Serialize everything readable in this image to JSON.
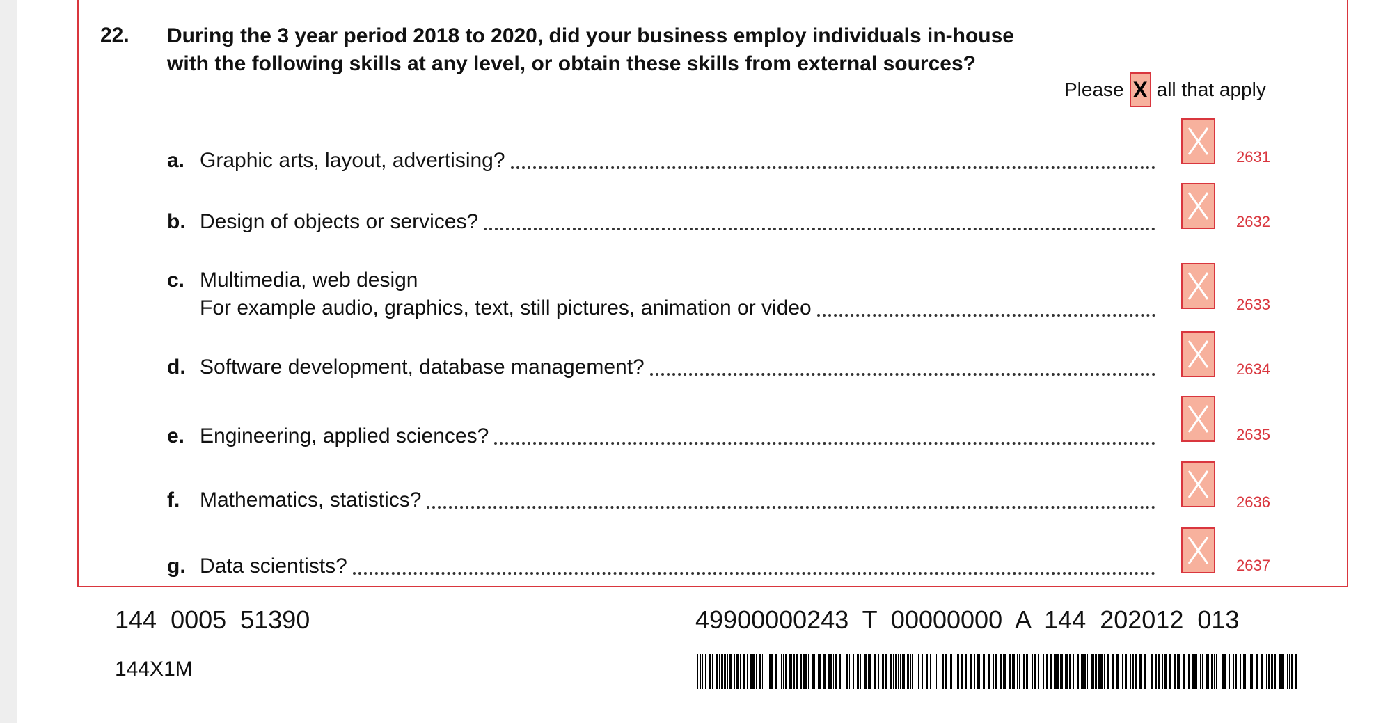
{
  "question": {
    "number": "22.",
    "text_line1": "During the 3 year period 2018 to 2020, did your business employ individuals in-house",
    "text_line2": "with the following skills at any level, or obtain these skills from external sources?"
  },
  "instruction": {
    "before": "Please",
    "mark": "X",
    "after": "all that apply"
  },
  "items": [
    {
      "letter": "a.",
      "label": "Graphic arts, layout, advertising?",
      "code": "2631",
      "checked": true
    },
    {
      "letter": "b.",
      "label": "Design of objects or services?",
      "code": "2632",
      "checked": true
    },
    {
      "letter": "c.",
      "label": "Multimedia, web design",
      "label2": "For example audio, graphics, text, still pictures, animation or video",
      "code": "2633",
      "checked": true
    },
    {
      "letter": "d.",
      "label": "Software development, database management?",
      "code": "2634",
      "checked": true
    },
    {
      "letter": "e.",
      "label": "Engineering, applied sciences?",
      "code": "2635",
      "checked": true
    },
    {
      "letter": "f.",
      "label": "Mathematics, statistics?",
      "code": "2636",
      "checked": true
    },
    {
      "letter": "g.",
      "label": "Data scientists?",
      "code": "2637",
      "checked": true
    }
  ],
  "footer": {
    "left_number": "144  0005  51390",
    "form_code": "144X1M",
    "right_number": "49900000243  T  00000000  A  144  202012  013"
  },
  "colors": {
    "frame_red": "#d9363e",
    "checkbox_fill": "#f7b19d"
  }
}
